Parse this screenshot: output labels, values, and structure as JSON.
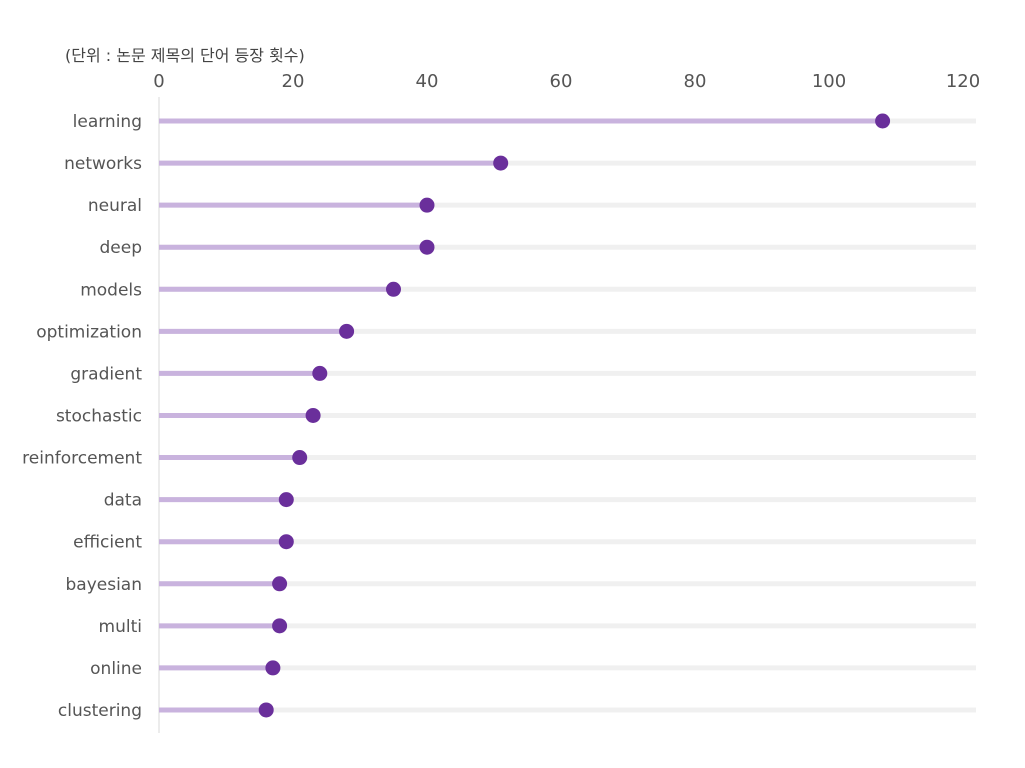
{
  "chart_data": {
    "type": "lollipop",
    "unit_label": "(단위 : 논문 제목의 단어 등장 횟수)",
    "categories": [
      "learning",
      "networks",
      "neural",
      "deep",
      "models",
      "optimization",
      "gradient",
      "stochastic",
      "reinforcement",
      "data",
      "efficient",
      "bayesian",
      "multi",
      "online",
      "clustering"
    ],
    "values": [
      108,
      51,
      40,
      40,
      35,
      28,
      24,
      23,
      21,
      19,
      19,
      18,
      18,
      17,
      16
    ],
    "xlim": [
      0,
      120
    ],
    "xticks": [
      0,
      20,
      40,
      60,
      80,
      100,
      120
    ],
    "axis_position": "top",
    "grid": false,
    "colors": {
      "stem": "#c9b3de",
      "dot": "#6a2f9b",
      "track": "#f0f0f0",
      "axis": "#d8d8d8",
      "text": "#555555"
    }
  }
}
